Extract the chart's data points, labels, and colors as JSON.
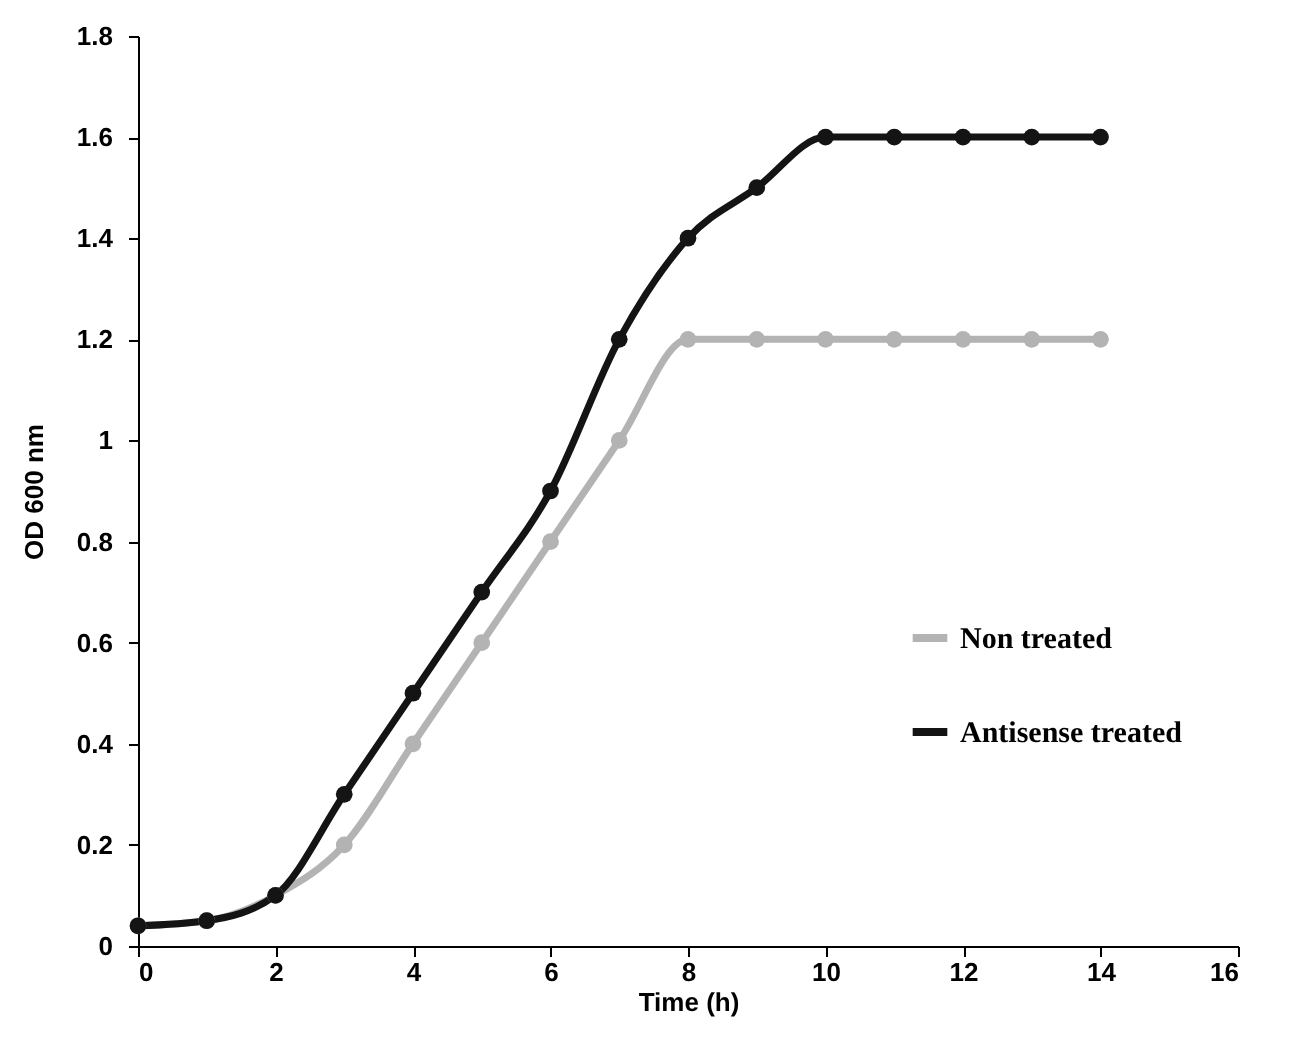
{
  "chart_data": {
    "type": "line",
    "xlabel": "Time (h)",
    "ylabel": "OD 600 nm",
    "x": [
      0,
      1,
      2,
      3,
      4,
      5,
      6,
      7,
      8,
      9,
      10,
      11,
      12,
      13,
      14
    ],
    "series": [
      {
        "name": "Non treated",
        "color": "#b3b3b3",
        "values": [
          0.04,
          0.05,
          0.1,
          0.2,
          0.4,
          0.6,
          0.8,
          1.0,
          1.2,
          1.2,
          1.2,
          1.2,
          1.2,
          1.2,
          1.2
        ]
      },
      {
        "name": "Antisense treated",
        "color": "#141414",
        "values": [
          0.04,
          0.05,
          0.1,
          0.3,
          0.5,
          0.7,
          0.9,
          1.2,
          1.4,
          1.5,
          1.6,
          1.6,
          1.6,
          1.6,
          1.6
        ]
      }
    ],
    "xlim": [
      0,
      16
    ],
    "xticks": [
      0,
      2,
      4,
      6,
      8,
      10,
      12,
      14,
      16
    ],
    "ylim": [
      0,
      1.8
    ],
    "yticks": [
      0,
      0.2,
      0.4,
      0.6,
      0.8,
      1,
      1.2,
      1.4,
      1.6,
      1.8
    ],
    "grid": false,
    "legend": "bottom right",
    "marker": "circle",
    "line_style": "solid"
  }
}
